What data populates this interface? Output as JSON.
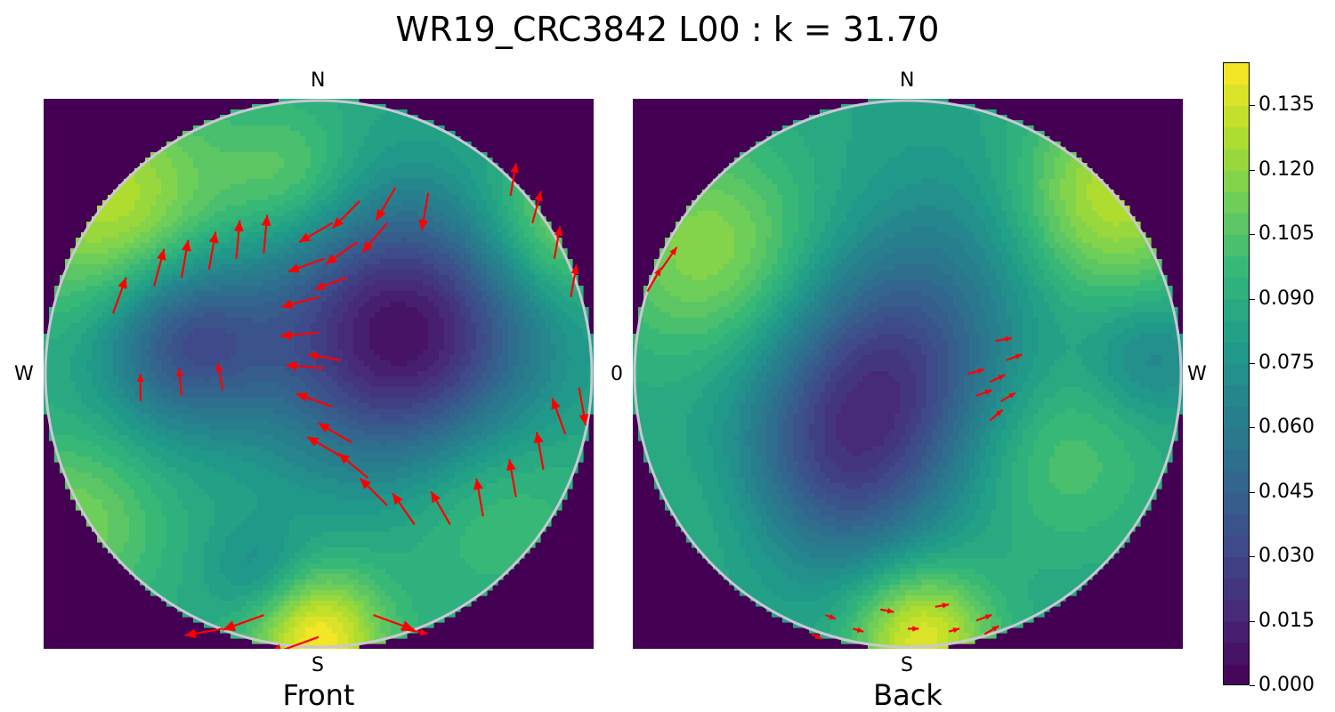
{
  "title": "WR19_CRC3842 L00 : k = 31.70",
  "colors": {
    "background_outside": "#440154",
    "arrow": "#ff0000",
    "rim": "#c8c8d2",
    "viridis": [
      "#440154",
      "#482878",
      "#3e4989",
      "#31688e",
      "#26828e",
      "#1f9e89",
      "#35b779",
      "#6ece58",
      "#b5de2b",
      "#fde725"
    ]
  },
  "chart_data": {
    "type": "heatmap",
    "title": "WR19_CRC3842 L00 : k = 31.70",
    "colorbar": {
      "range": [
        0.0,
        0.145
      ],
      "ticks": [
        "0.000",
        "0.015",
        "0.030",
        "0.045",
        "0.060",
        "0.075",
        "0.090",
        "0.105",
        "0.120",
        "0.135"
      ],
      "tick_values": [
        0.0,
        0.015,
        0.03,
        0.045,
        0.06,
        0.075,
        0.09,
        0.105,
        0.12,
        0.135
      ],
      "colormap": "viridis"
    },
    "panels": [
      {
        "name": "Front",
        "caption": "Front",
        "labels": {
          "top": "N",
          "bottom": "S",
          "left": "W",
          "right": ""
        },
        "base_value": 0.088,
        "blobs": [
          {
            "u": -0.75,
            "v": 0.62,
            "value": 0.13,
            "s": 0.28
          },
          {
            "u": 0.0,
            "v": -0.97,
            "value": 0.145,
            "s": 0.17
          },
          {
            "u": 0.3,
            "v": 0.14,
            "value": 0.005,
            "s": 0.34
          },
          {
            "u": -0.48,
            "v": 0.12,
            "value": 0.035,
            "s": 0.22
          },
          {
            "u": -0.9,
            "v": -0.55,
            "value": 0.115,
            "s": 0.22
          },
          {
            "u": -0.1,
            "v": 0.72,
            "value": 0.11,
            "s": 0.18
          },
          {
            "u": 0.88,
            "v": 0.55,
            "value": 0.12,
            "s": 0.2
          },
          {
            "u": 0.62,
            "v": -0.45,
            "value": 0.105,
            "s": 0.25
          },
          {
            "u": -0.22,
            "v": -0.72,
            "value": 0.07,
            "s": 0.13
          }
        ],
        "arrows": [
          {
            "u": 0.0,
            "v": -0.96,
            "a": 200,
            "l": 0.2
          },
          {
            "u": -0.2,
            "v": -0.88,
            "a": 200,
            "l": 0.16
          },
          {
            "u": 0.2,
            "v": -0.88,
            "a": -20,
            "l": 0.16
          },
          {
            "u": -0.35,
            "v": -0.93,
            "a": 190,
            "l": 0.14
          },
          {
            "u": 0.3,
            "v": -0.93,
            "a": -10,
            "l": 0.1
          },
          {
            "u": -0.6,
            "v": 0.32,
            "a": 75,
            "l": 0.14
          },
          {
            "u": -0.5,
            "v": 0.35,
            "a": 80,
            "l": 0.14
          },
          {
            "u": -0.4,
            "v": 0.38,
            "a": 80,
            "l": 0.14
          },
          {
            "u": -0.3,
            "v": 0.42,
            "a": 85,
            "l": 0.14
          },
          {
            "u": -0.2,
            "v": 0.44,
            "a": 85,
            "l": 0.14
          },
          {
            "u": -0.65,
            "v": -0.1,
            "a": 90,
            "l": 0.1
          },
          {
            "u": -0.5,
            "v": -0.08,
            "a": 95,
            "l": 0.1
          },
          {
            "u": -0.35,
            "v": -0.06,
            "a": 100,
            "l": 0.1
          },
          {
            "u": -0.75,
            "v": 0.22,
            "a": 70,
            "l": 0.14
          },
          {
            "u": 0.95,
            "v": -0.05,
            "a": -80,
            "l": 0.14
          },
          {
            "u": 0.9,
            "v": -0.22,
            "a": 110,
            "l": 0.14
          },
          {
            "u": 0.82,
            "v": -0.35,
            "a": 100,
            "l": 0.14
          },
          {
            "u": 0.72,
            "v": -0.45,
            "a": 100,
            "l": 0.14
          },
          {
            "u": 0.6,
            "v": -0.52,
            "a": 100,
            "l": 0.14
          },
          {
            "u": 0.48,
            "v": -0.55,
            "a": 120,
            "l": 0.14
          },
          {
            "u": 0.35,
            "v": -0.55,
            "a": 125,
            "l": 0.14
          },
          {
            "u": 0.25,
            "v": -0.48,
            "a": 135,
            "l": 0.14
          },
          {
            "u": 0.18,
            "v": -0.38,
            "a": 140,
            "l": 0.14
          },
          {
            "u": 0.12,
            "v": -0.25,
            "a": 150,
            "l": 0.14
          },
          {
            "u": 0.05,
            "v": -0.12,
            "a": 160,
            "l": 0.14
          },
          {
            "u": 0.02,
            "v": 0.02,
            "a": 175,
            "l": 0.14
          },
          {
            "u": 0.0,
            "v": 0.15,
            "a": 185,
            "l": 0.14
          },
          {
            "u": 0.0,
            "v": 0.28,
            "a": 195,
            "l": 0.14
          },
          {
            "u": 0.02,
            "v": 0.42,
            "a": 200,
            "l": 0.14
          },
          {
            "u": 0.05,
            "v": 0.55,
            "a": 210,
            "l": 0.14
          },
          {
            "u": 0.15,
            "v": 0.63,
            "a": 225,
            "l": 0.14
          },
          {
            "u": 0.28,
            "v": 0.68,
            "a": 240,
            "l": 0.14
          },
          {
            "u": 0.4,
            "v": 0.66,
            "a": 260,
            "l": 0.14
          },
          {
            "u": 0.7,
            "v": 0.65,
            "a": 80,
            "l": 0.12
          },
          {
            "u": 0.78,
            "v": 0.55,
            "a": 75,
            "l": 0.12
          },
          {
            "u": 0.86,
            "v": 0.42,
            "a": 80,
            "l": 0.12
          },
          {
            "u": 0.92,
            "v": 0.28,
            "a": 80,
            "l": 0.12
          },
          {
            "u": 0.08,
            "v": -0.3,
            "a": 150,
            "l": 0.14
          },
          {
            "u": 0.14,
            "v": 0.48,
            "a": 215,
            "l": 0.14
          },
          {
            "u": 0.25,
            "v": 0.55,
            "a": 230,
            "l": 0.14
          },
          {
            "u": 0.08,
            "v": 0.05,
            "a": 170,
            "l": 0.12
          },
          {
            "u": 0.1,
            "v": 0.35,
            "a": 200,
            "l": 0.12
          }
        ]
      },
      {
        "name": "Back",
        "caption": "Back",
        "labels": {
          "top": "N",
          "bottom": "S",
          "left": "0",
          "right": "W"
        },
        "base_value": 0.085,
        "blobs": [
          {
            "u": -0.72,
            "v": 0.45,
            "value": 0.12,
            "s": 0.28
          },
          {
            "u": 0.75,
            "v": 0.65,
            "value": 0.13,
            "s": 0.25
          },
          {
            "u": 0.05,
            "v": -0.96,
            "value": 0.14,
            "s": 0.18
          },
          {
            "u": -0.05,
            "v": 0.05,
            "value": 0.035,
            "s": 0.3
          },
          {
            "u": -0.25,
            "v": -0.35,
            "value": 0.04,
            "s": 0.28
          },
          {
            "u": 0.88,
            "v": 0.05,
            "value": 0.065,
            "s": 0.15
          },
          {
            "u": 0.55,
            "v": -0.3,
            "value": 0.105,
            "s": 0.25
          },
          {
            "u": -0.7,
            "v": -0.5,
            "value": 0.095,
            "s": 0.25
          },
          {
            "u": 0.2,
            "v": 0.55,
            "value": 0.075,
            "s": 0.25
          }
        ],
        "arrows": [
          {
            "u": -0.95,
            "v": 0.3,
            "a": 60,
            "l": 0.1
          },
          {
            "u": -0.9,
            "v": 0.38,
            "a": 55,
            "l": 0.1
          },
          {
            "u": 0.32,
            "v": 0.12,
            "a": 10,
            "l": 0.06
          },
          {
            "u": 0.36,
            "v": 0.05,
            "a": 20,
            "l": 0.06
          },
          {
            "u": 0.3,
            "v": -0.03,
            "a": 25,
            "l": 0.06
          },
          {
            "u": 0.34,
            "v": -0.1,
            "a": 30,
            "l": 0.06
          },
          {
            "u": 0.3,
            "v": -0.17,
            "a": 40,
            "l": 0.06
          },
          {
            "u": 0.25,
            "v": -0.08,
            "a": 20,
            "l": 0.06
          },
          {
            "u": 0.22,
            "v": 0.0,
            "a": 15,
            "l": 0.06
          },
          {
            "u": -0.3,
            "v": -0.88,
            "a": -20,
            "l": 0.04
          },
          {
            "u": -0.1,
            "v": -0.86,
            "a": -10,
            "l": 0.05
          },
          {
            "u": 0.1,
            "v": -0.85,
            "a": 10,
            "l": 0.05
          },
          {
            "u": 0.25,
            "v": -0.9,
            "a": 20,
            "l": 0.06
          },
          {
            "u": 0.28,
            "v": -0.95,
            "a": 30,
            "l": 0.06
          },
          {
            "u": -0.2,
            "v": -0.93,
            "a": -15,
            "l": 0.04
          },
          {
            "u": 0.0,
            "v": -0.93,
            "a": 0,
            "l": 0.04
          },
          {
            "u": 0.15,
            "v": -0.94,
            "a": 15,
            "l": 0.04
          },
          {
            "u": -0.35,
            "v": -0.95,
            "a": -25,
            "l": 0.04
          }
        ]
      }
    ]
  }
}
